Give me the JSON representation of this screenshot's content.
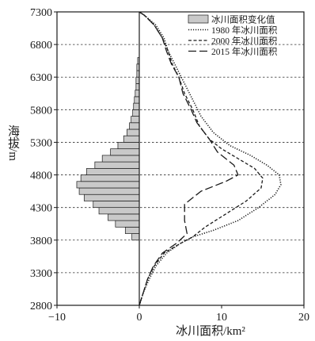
{
  "chart_data": {
    "type": "line",
    "subtype": "bar+line",
    "xlabel": "冰川面积/km²",
    "ylabel": "海拔/m",
    "xlim": [
      -10,
      20
    ],
    "ylim": [
      2800,
      7300
    ],
    "xticks": [
      "−10",
      "0",
      "10",
      "20"
    ],
    "yticks": [
      "2800",
      "3300",
      "3800",
      "4300",
      "4800",
      "5300",
      "5800",
      "6300",
      "6800",
      "7300"
    ],
    "ytick_values": [
      2800,
      3300,
      3800,
      4300,
      4800,
      5300,
      5800,
      6300,
      6800,
      7300
    ],
    "xtick_values": [
      -10,
      0,
      10,
      20
    ],
    "grid": "horizontal dashed at y ticks",
    "legend_position": "top-right",
    "legend": [
      "冰川面积变化值",
      "1980 年冰川面积",
      "2000 年冰川面积",
      "2015 年冰川面积"
    ],
    "bars": {
      "name": "冰川面积变化值",
      "bin_height": 100,
      "elevation_bottoms": [
        3800,
        3900,
        4000,
        4100,
        4200,
        4300,
        4400,
        4500,
        4600,
        4700,
        4800,
        4900,
        5000,
        5100,
        5200,
        5300,
        5400,
        5500,
        5600,
        5700,
        5800,
        5900,
        6000,
        6100,
        6200,
        6300,
        6400,
        6500
      ],
      "values": [
        -0.9,
        -1.7,
        -2.9,
        -3.8,
        -4.9,
        -5.6,
        -6.7,
        -7.3,
        -7.6,
        -7.1,
        -6.4,
        -5.4,
        -4.5,
        -3.5,
        -2.6,
        -1.9,
        -1.5,
        -1.2,
        -1.0,
        -0.8,
        -0.7,
        -0.6,
        -0.5,
        -0.4,
        -0.4,
        -0.3,
        -0.3,
        -0.2
      ]
    },
    "series": [
      {
        "name": "1980 年冰川面积",
        "style": "dotted",
        "points": [
          [
            0.0,
            2800
          ],
          [
            0.5,
            3000
          ],
          [
            1.2,
            3200
          ],
          [
            2.0,
            3400
          ],
          [
            3.3,
            3600
          ],
          [
            5.0,
            3750
          ],
          [
            6.5,
            3850
          ],
          [
            9.0,
            3950
          ],
          [
            12.0,
            4100
          ],
          [
            14.5,
            4300
          ],
          [
            16.5,
            4500
          ],
          [
            17.2,
            4650
          ],
          [
            17.0,
            4800
          ],
          [
            15.5,
            4950
          ],
          [
            13.5,
            5100
          ],
          [
            11.0,
            5250
          ],
          [
            9.0,
            5450
          ],
          [
            7.5,
            5700
          ],
          [
            6.5,
            5950
          ],
          [
            5.5,
            6200
          ],
          [
            4.5,
            6450
          ],
          [
            3.5,
            6700
          ],
          [
            3.0,
            6900
          ],
          [
            2.0,
            7100
          ],
          [
            0.6,
            7250
          ],
          [
            0.0,
            7300
          ]
        ]
      },
      {
        "name": "2000 年冰川面积",
        "style": "dashed",
        "points": [
          [
            0.0,
            2800
          ],
          [
            0.5,
            3000
          ],
          [
            1.0,
            3200
          ],
          [
            1.8,
            3400
          ],
          [
            3.0,
            3600
          ],
          [
            5.0,
            3750
          ],
          [
            6.5,
            3850
          ],
          [
            8.0,
            4000
          ],
          [
            10.5,
            4200
          ],
          [
            13.0,
            4400
          ],
          [
            14.8,
            4600
          ],
          [
            15.0,
            4750
          ],
          [
            14.0,
            4900
          ],
          [
            12.0,
            5050
          ],
          [
            10.0,
            5200
          ],
          [
            8.5,
            5350
          ],
          [
            7.3,
            5550
          ],
          [
            6.5,
            5800
          ],
          [
            5.5,
            6050
          ],
          [
            4.8,
            6300
          ],
          [
            4.0,
            6500
          ],
          [
            3.5,
            6700
          ],
          [
            2.8,
            6900
          ],
          [
            1.8,
            7100
          ],
          [
            0.6,
            7250
          ],
          [
            0.0,
            7300
          ]
        ]
      },
      {
        "name": "2015 年冰川面积",
        "style": "longdash",
        "points": [
          [
            0.0,
            2800
          ],
          [
            0.5,
            3000
          ],
          [
            1.0,
            3200
          ],
          [
            1.7,
            3400
          ],
          [
            2.8,
            3600
          ],
          [
            4.5,
            3750
          ],
          [
            5.8,
            3900
          ],
          [
            5.5,
            4100
          ],
          [
            5.5,
            4350
          ],
          [
            7.5,
            4550
          ],
          [
            10.5,
            4700
          ],
          [
            12.0,
            4800
          ],
          [
            11.5,
            4950
          ],
          [
            9.5,
            5150
          ],
          [
            8.5,
            5350
          ],
          [
            7.0,
            5600
          ],
          [
            6.3,
            5800
          ],
          [
            5.3,
            6050
          ],
          [
            4.8,
            6300
          ],
          [
            3.9,
            6500
          ],
          [
            3.3,
            6700
          ],
          [
            2.8,
            6900
          ],
          [
            1.8,
            7100
          ],
          [
            0.6,
            7250
          ],
          [
            0.0,
            7300
          ]
        ]
      }
    ]
  }
}
